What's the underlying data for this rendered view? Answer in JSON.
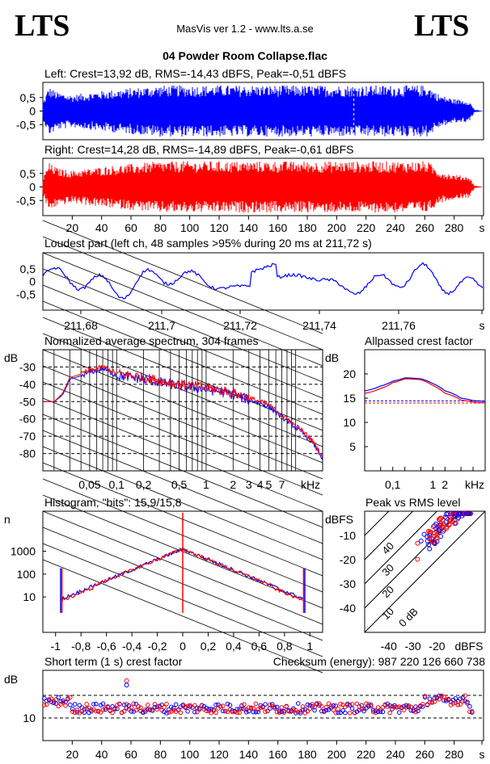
{
  "header": {
    "logo_left": "LTS",
    "logo_right": "LTS",
    "app_title": "MasVis ver 1.2 - www.lts.a.se",
    "file_title": "04 Powder Room Collapse.flac"
  },
  "colors": {
    "left": "#0000ff",
    "right": "#ff0000",
    "grid": "#000000"
  },
  "chart_data": [
    {
      "id": "left",
      "type": "line",
      "title": "Left: Crest=13,92 dB, RMS=-14,43 dBFS, Peak=-0,51 dBFS",
      "yticks": [
        "0,5",
        "0",
        "-0,5"
      ],
      "ylim": [
        -1,
        1
      ],
      "xlim": [
        0,
        300
      ],
      "envelope": {
        "x": [
          0,
          4,
          10,
          20,
          40,
          80,
          120,
          160,
          200,
          240,
          262,
          270,
          280,
          290,
          294,
          300
        ],
        "amp": [
          0.3,
          0.9,
          0.7,
          0.6,
          0.75,
          0.95,
          0.95,
          0.95,
          0.95,
          0.95,
          0.95,
          0.6,
          0.45,
          0.4,
          0.05,
          0.0
        ]
      }
    },
    {
      "id": "right",
      "type": "line",
      "title": "Right: Crest=14,28 dB, RMS=-14,89 dBFS, Peak=-0,61 dBFS",
      "yticks": [
        "0,5",
        "0",
        "-0,5"
      ],
      "ylim": [
        -1,
        1
      ],
      "xlim": [
        0,
        300
      ],
      "xticks": [
        "20",
        "40",
        "60",
        "80",
        "100",
        "120",
        "140",
        "160",
        "180",
        "200",
        "220",
        "240",
        "260",
        "280",
        "s"
      ],
      "envelope": {
        "x": [
          0,
          4,
          10,
          20,
          40,
          80,
          120,
          160,
          200,
          240,
          262,
          270,
          280,
          290,
          294,
          300
        ],
        "amp": [
          0.3,
          0.9,
          0.7,
          0.6,
          0.75,
          0.95,
          0.95,
          0.95,
          0.95,
          0.95,
          0.95,
          0.6,
          0.45,
          0.4,
          0.05,
          0.0
        ]
      }
    },
    {
      "id": "loudest",
      "type": "line",
      "title": "Loudest part (left  ch, 48 samples >95% during 20 ms at 211,72 s)",
      "yticks": [
        "0,5",
        "0",
        "-0,5"
      ],
      "ylim": [
        -1,
        1
      ],
      "xticks": [
        "211,68",
        "211,7",
        "211,72",
        "211,74",
        "211,76",
        "s"
      ]
    },
    {
      "id": "spectrum",
      "type": "line",
      "title": "Normalized average spectrum, 304 frames",
      "ylabel": "dB",
      "yticks": [
        "-30",
        "-40",
        "-50",
        "-60",
        "-70",
        "-80"
      ],
      "ylim": [
        -90,
        -20
      ],
      "xticks": [
        "0,05",
        "0,1",
        "0,2",
        "0,5",
        "1",
        "2",
        "3",
        "4",
        "5",
        "7",
        "kHz"
      ],
      "x": [
        0.02,
        0.025,
        0.03,
        0.05,
        0.07,
        0.1,
        0.2,
        0.3,
        0.5,
        1,
        2,
        3,
        5,
        7,
        10,
        15,
        20
      ],
      "series": [
        {
          "y": [
            -50,
            -45,
            -36,
            -32,
            -30,
            -34,
            -36,
            -38,
            -40,
            -42,
            -45,
            -48,
            -52,
            -58,
            -64,
            -72,
            -82
          ]
        },
        {
          "y": [
            -50,
            -46,
            -37,
            -33,
            -31,
            -35,
            -37,
            -39,
            -41,
            -43,
            -46,
            -49,
            -53,
            -59,
            -65,
            -73,
            -83
          ]
        }
      ]
    },
    {
      "id": "allpass",
      "type": "line",
      "title": "Allpassed crest factor",
      "ylabel": "dB",
      "yticks": [
        "20",
        "15",
        "10",
        "5"
      ],
      "ylim": [
        0,
        25
      ],
      "xticks": [
        "0,1",
        "1",
        "2",
        "kHz"
      ],
      "x": [
        0.02,
        0.05,
        0.1,
        0.2,
        0.5,
        1,
        2,
        5,
        10,
        20
      ],
      "series": [
        {
          "y": [
            16.5,
            17.5,
            18.5,
            19.2,
            19,
            18,
            16.5,
            15,
            14.5,
            14.3
          ]
        },
        {
          "y": [
            16,
            17,
            18.2,
            19,
            18.8,
            17.6,
            16,
            14.6,
            14.2,
            14.0
          ]
        }
      ],
      "reference": [
        14.43,
        14.0
      ]
    },
    {
      "id": "histogram",
      "type": "line",
      "title": "Histogram, \"bits\": 15,9/15,8",
      "ylabel": "n",
      "yticks": [
        "1000",
        "100",
        "10"
      ],
      "xticks": [
        "-1",
        "-0,8",
        "-0,6",
        "-0,4",
        "-0,2",
        "0",
        "0,2",
        "0,4",
        "0,6",
        "0,8",
        "1"
      ],
      "xlim": [
        -1.1,
        1.1
      ]
    },
    {
      "id": "peakrms",
      "type": "scatter",
      "title": "Peak vs RMS level",
      "ylabel": "dBFS",
      "yticks": [
        "-10",
        "-20",
        "-30",
        "-40"
      ],
      "xticks": [
        "-40",
        "-30",
        "-20",
        "dBFS"
      ],
      "xlim": [
        -50,
        0
      ],
      "ylim": [
        -50,
        0
      ],
      "diagonal_labels": [
        "40",
        "30",
        "20",
        "10",
        "0 dB"
      ]
    },
    {
      "id": "shortcrest",
      "type": "scatter",
      "title": "Short term (1 s) crest factor",
      "ylabel": "dB",
      "yticks": [
        "10"
      ],
      "checksum": "Checksum (energy):   987 220 126 660 738",
      "xticks": [
        "20",
        "40",
        "60",
        "80",
        "100",
        "120",
        "140",
        "160",
        "180",
        "200",
        "220",
        "240",
        "260",
        "280",
        "s"
      ],
      "xlim": [
        0,
        300
      ]
    }
  ]
}
